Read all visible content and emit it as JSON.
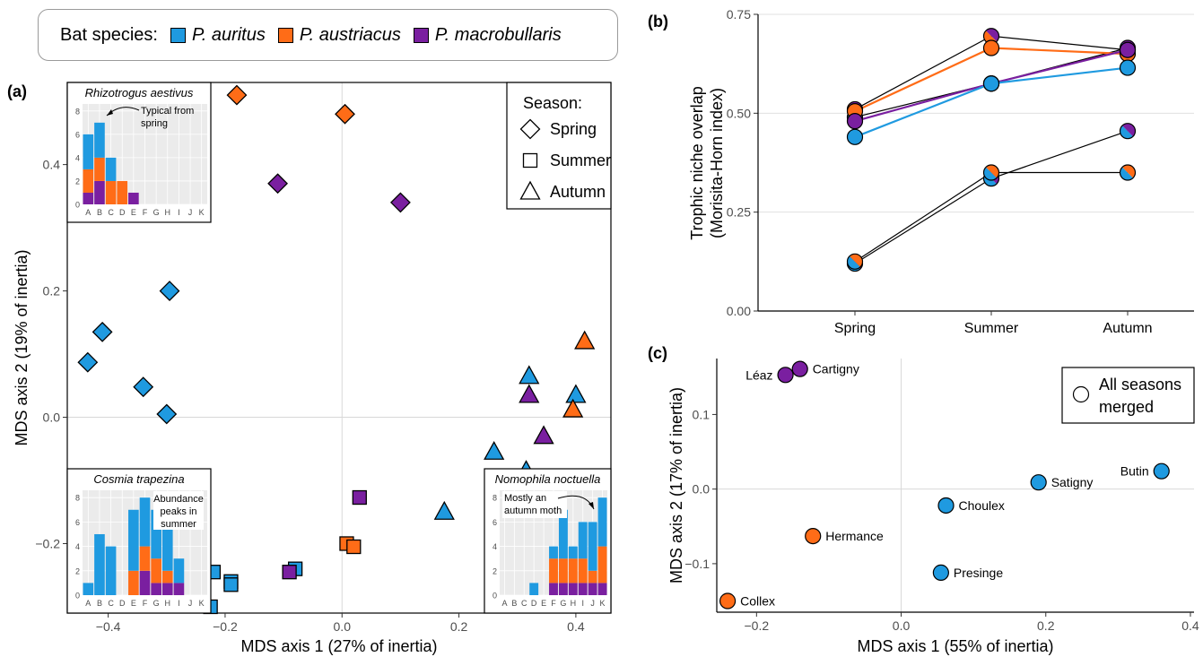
{
  "colors": {
    "P. auritus": "#1f9ae0",
    "P. austriacus": "#ff6c17",
    "P. macrobullaris": "#7a1fa0"
  },
  "species_legend": {
    "title": "Bat species:",
    "items": [
      {
        "label": "P. auritus",
        "color": "#1f9ae0"
      },
      {
        "label": "P. austriacus",
        "color": "#ff6c17"
      },
      {
        "label": "P. macrobullaris",
        "color": "#7a1fa0"
      }
    ]
  },
  "chart_data": [
    {
      "panel": "(a)",
      "type": "scatter",
      "xlabel": "MDS axis 1 (27% of inertia)",
      "ylabel": "MDS axis 2 (19% of inertia)",
      "xlim": [
        -0.47,
        0.46
      ],
      "ylim": [
        -0.31,
        0.53
      ],
      "xticks": [
        -0.4,
        -0.2,
        0.0,
        0.2,
        0.4
      ],
      "xtick_labels": [
        "−0.4",
        "−0.2",
        "0.0",
        "0.2",
        "0.4"
      ],
      "yticks": [
        -0.2,
        0.0,
        0.2,
        0.4
      ],
      "ytick_labels": [
        "−0.2",
        "0.0",
        "0.2",
        "0.4"
      ],
      "season_legend": {
        "title": "Season:",
        "items": [
          "Spring",
          "Summer",
          "Autumn"
        ],
        "position": "top-right"
      },
      "points": [
        {
          "x": -0.18,
          "y": 0.51,
          "species": "P. austriacus",
          "season": "Spring"
        },
        {
          "x": 0.005,
          "y": 0.48,
          "species": "P. austriacus",
          "season": "Spring"
        },
        {
          "x": -0.11,
          "y": 0.37,
          "species": "P. macrobullaris",
          "season": "Spring"
        },
        {
          "x": 0.1,
          "y": 0.34,
          "species": "P. macrobullaris",
          "season": "Spring"
        },
        {
          "x": -0.295,
          "y": 0.2,
          "species": "P. auritus",
          "season": "Spring"
        },
        {
          "x": -0.41,
          "y": 0.135,
          "species": "P. auritus",
          "season": "Spring"
        },
        {
          "x": -0.435,
          "y": 0.087,
          "species": "P. auritus",
          "season": "Spring"
        },
        {
          "x": -0.34,
          "y": 0.048,
          "species": "P. auritus",
          "season": "Spring"
        },
        {
          "x": -0.3,
          "y": 0.005,
          "species": "P. auritus",
          "season": "Spring"
        },
        {
          "x": 0.03,
          "y": -0.127,
          "species": "P. macrobullaris",
          "season": "Summer"
        },
        {
          "x": 0.008,
          "y": -0.2,
          "species": "P. austriacus",
          "season": "Summer"
        },
        {
          "x": 0.02,
          "y": -0.205,
          "species": "P. austriacus",
          "season": "Summer"
        },
        {
          "x": -0.08,
          "y": -0.24,
          "species": "P. auritus",
          "season": "Summer"
        },
        {
          "x": -0.09,
          "y": -0.245,
          "species": "P. macrobullaris",
          "season": "Summer"
        },
        {
          "x": -0.22,
          "y": -0.245,
          "species": "P. auritus",
          "season": "Summer"
        },
        {
          "x": -0.19,
          "y": -0.26,
          "species": "P. auritus",
          "season": "Summer"
        },
        {
          "x": -0.19,
          "y": -0.265,
          "species": "P. auritus",
          "season": "Summer"
        },
        {
          "x": -0.225,
          "y": -0.3,
          "species": "P. auritus",
          "season": "Summer"
        },
        {
          "x": 0.415,
          "y": 0.12,
          "species": "P. austriacus",
          "season": "Autumn"
        },
        {
          "x": 0.32,
          "y": 0.065,
          "species": "P. auritus",
          "season": "Autumn"
        },
        {
          "x": 0.4,
          "y": 0.035,
          "species": "P. auritus",
          "season": "Autumn"
        },
        {
          "x": 0.32,
          "y": 0.035,
          "species": "P. macrobullaris",
          "season": "Autumn"
        },
        {
          "x": 0.395,
          "y": 0.012,
          "species": "P. austriacus",
          "season": "Autumn"
        },
        {
          "x": 0.345,
          "y": -0.03,
          "species": "P. macrobullaris",
          "season": "Autumn"
        },
        {
          "x": 0.26,
          "y": -0.055,
          "species": "P. auritus",
          "season": "Autumn"
        },
        {
          "x": 0.315,
          "y": -0.085,
          "species": "P. auritus",
          "season": "Autumn"
        },
        {
          "x": 0.175,
          "y": -0.15,
          "species": "P. auritus",
          "season": "Autumn"
        }
      ],
      "insets": [
        {
          "title": "Rhizotrogus aestivus",
          "type": "stacked-bar",
          "annotation": [
            "Typical from",
            "spring"
          ],
          "categories": [
            "A",
            "B",
            "C",
            "D",
            "E",
            "F",
            "G",
            "H",
            "I",
            "J",
            "K"
          ],
          "yticks": [
            0,
            2,
            4,
            6,
            8
          ],
          "ymax": 8.6,
          "stacks": [
            {
              "macro": 1,
              "austr": 2,
              "aur": 3
            },
            {
              "macro": 2,
              "austr": 2,
              "aur": 3
            },
            {
              "macro": 0,
              "austr": 2,
              "aur": 2
            },
            {
              "macro": 0,
              "austr": 2,
              "aur": 0
            },
            {
              "macro": 1,
              "austr": 0,
              "aur": 0
            },
            {
              "macro": 0,
              "austr": 0,
              "aur": 0
            },
            {
              "macro": 0,
              "austr": 0,
              "aur": 0
            },
            {
              "macro": 0,
              "austr": 0,
              "aur": 0
            },
            {
              "macro": 0,
              "austr": 0,
              "aur": 0
            },
            {
              "macro": 0,
              "austr": 0,
              "aur": 0
            },
            {
              "macro": 0,
              "austr": 0,
              "aur": 0
            }
          ]
        },
        {
          "title": "Cosmia trapezina",
          "type": "stacked-bar",
          "annotation": [
            "Abundance",
            "peaks in",
            "summer"
          ],
          "categories": [
            "A",
            "B",
            "C",
            "D",
            "E",
            "F",
            "G",
            "H",
            "I",
            "J",
            "K"
          ],
          "yticks": [
            0,
            2,
            4,
            6,
            8
          ],
          "ymax": 8.6,
          "stacks": [
            {
              "macro": 0,
              "austr": 0,
              "aur": 1
            },
            {
              "macro": 0,
              "austr": 0,
              "aur": 5
            },
            {
              "macro": 0,
              "austr": 0,
              "aur": 4
            },
            {
              "macro": 0,
              "austr": 0,
              "aur": 0
            },
            {
              "macro": 0,
              "austr": 2,
              "aur": 5
            },
            {
              "macro": 2,
              "austr": 2,
              "aur": 4
            },
            {
              "macro": 1,
              "austr": 2,
              "aur": 4
            },
            {
              "macro": 1,
              "austr": 1,
              "aur": 5
            },
            {
              "macro": 1,
              "austr": 0,
              "aur": 2
            },
            {
              "macro": 0,
              "austr": 0,
              "aur": 0
            },
            {
              "macro": 0,
              "austr": 0,
              "aur": 0
            }
          ]
        },
        {
          "title": "Nomophila noctuella",
          "type": "stacked-bar",
          "annotation": [
            "Mostly an",
            "autumn moth"
          ],
          "categories": [
            "A",
            "B",
            "C",
            "D",
            "E",
            "F",
            "G",
            "H",
            "I",
            "J",
            "K"
          ],
          "yticks": [
            0,
            2,
            4,
            6,
            8
          ],
          "ymax": 8.6,
          "stacks": [
            {
              "macro": 0,
              "austr": 0,
              "aur": 0
            },
            {
              "macro": 0,
              "austr": 0,
              "aur": 0
            },
            {
              "macro": 0,
              "austr": 0,
              "aur": 0
            },
            {
              "macro": 0,
              "austr": 0,
              "aur": 1
            },
            {
              "macro": 0,
              "austr": 0,
              "aur": 0
            },
            {
              "macro": 1,
              "austr": 2,
              "aur": 1
            },
            {
              "macro": 1,
              "austr": 2,
              "aur": 4
            },
            {
              "macro": 1,
              "austr": 2,
              "aur": 1
            },
            {
              "macro": 1,
              "austr": 2,
              "aur": 3
            },
            {
              "macro": 1,
              "austr": 1,
              "aur": 4
            },
            {
              "macro": 1,
              "austr": 3,
              "aur": 4
            }
          ]
        }
      ]
    },
    {
      "panel": "(b)",
      "type": "line",
      "ylabel": [
        "Trophic niche overlap",
        "(Morisita-Horn index)"
      ],
      "categories": [
        "Spring",
        "Summer",
        "Autumn"
      ],
      "ylim": [
        0,
        0.75
      ],
      "yticks": [
        0.0,
        0.25,
        0.5,
        0.75
      ],
      "ytick_labels": [
        "0.00",
        "0.25",
        "0.50",
        "0.75"
      ],
      "series": [
        {
          "values": [
            0.51,
            0.695,
            0.66
          ],
          "line_color": "#000000",
          "pair": [
            "P. austriacus",
            "P. macrobullaris"
          ]
        },
        {
          "values": [
            0.49,
            0.575,
            0.665
          ],
          "line_color": "#000000",
          "pair": [
            "P. auritus",
            "P. macrobullaris"
          ]
        },
        {
          "values": [
            0.505,
            0.665,
            0.65
          ],
          "line_color": "#ff6c17",
          "pair": [
            "P. austriacus"
          ]
        },
        {
          "values": [
            0.48,
            0.575,
            0.66
          ],
          "line_color": "#7a1fa0",
          "pair": [
            "P. macrobullaris"
          ]
        },
        {
          "values": [
            0.44,
            0.575,
            0.615
          ],
          "line_color": "#1f9ae0",
          "pair": [
            "P. auritus"
          ]
        },
        {
          "values": [
            0.12,
            0.335,
            0.455
          ],
          "line_color": "#000000",
          "pair": [
            "P. auritus",
            "P. macrobullaris"
          ]
        },
        {
          "values": [
            0.125,
            0.35,
            0.35
          ],
          "line_color": "#000000",
          "pair": [
            "P. auritus",
            "P. austriacus"
          ]
        }
      ]
    },
    {
      "panel": "(c)",
      "type": "scatter",
      "xlabel": "MDS axis 1 (55% of inertia)",
      "ylabel": "MDS axis 2 (17% of inertia)",
      "xlim": [
        -0.255,
        0.405
      ],
      "ylim": [
        -0.165,
        0.175
      ],
      "xticks": [
        -0.2,
        0.0,
        0.2,
        0.4
      ],
      "xtick_labels": [
        "−0.2",
        "0.0",
        "0.2",
        "0.4"
      ],
      "yticks": [
        -0.1,
        0.0,
        0.1
      ],
      "ytick_labels": [
        "−0.1",
        "0.0",
        "0.1"
      ],
      "legend": {
        "label": [
          "All seasons",
          "merged"
        ],
        "position": "top-right"
      },
      "points": [
        {
          "label": "Léaz",
          "x": -0.16,
          "y": 0.153,
          "species": "P. macrobullaris",
          "label_side": "left"
        },
        {
          "label": "Cartigny",
          "x": -0.14,
          "y": 0.161,
          "species": "P. macrobullaris",
          "label_side": "right"
        },
        {
          "label": "Butin",
          "x": 0.36,
          "y": 0.024,
          "species": "P. auritus",
          "label_side": "left"
        },
        {
          "label": "Satigny",
          "x": 0.19,
          "y": 0.009,
          "species": "P. auritus",
          "label_side": "right"
        },
        {
          "label": "Choulex",
          "x": 0.062,
          "y": -0.022,
          "species": "P. auritus",
          "label_side": "right"
        },
        {
          "label": "Hermance",
          "x": -0.122,
          "y": -0.063,
          "species": "P. austriacus",
          "label_side": "right"
        },
        {
          "label": "Presinge",
          "x": 0.055,
          "y": -0.112,
          "species": "P. auritus",
          "label_side": "right"
        },
        {
          "label": "Collex",
          "x": -0.24,
          "y": -0.15,
          "species": "P. austriacus",
          "label_side": "right"
        }
      ]
    }
  ],
  "panel_labels": {
    "a": "(a)",
    "b": "(b)",
    "c": "(c)"
  }
}
